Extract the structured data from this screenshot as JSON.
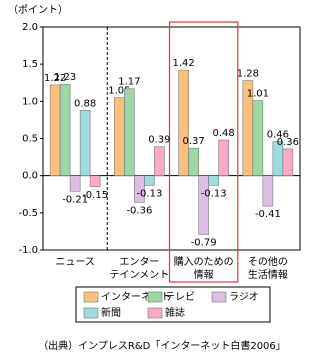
{
  "chart_data": {
    "type": "bar",
    "y_label": "（ポイント）",
    "categories": [
      "ニュース",
      "エンター\nテインメント",
      "購入のための\n情報",
      "その他の\n生活情報"
    ],
    "series": [
      {
        "name": "インターネット",
        "color": "#f9c07c",
        "values": [
          1.22,
          1.05,
          1.42,
          1.28
        ]
      },
      {
        "name": "テレビ",
        "color": "#9fd6a6",
        "values": [
          1.23,
          1.17,
          0.37,
          1.01
        ]
      },
      {
        "name": "ラジオ",
        "color": "#dcbde4",
        "values": [
          -0.21,
          -0.36,
          -0.79,
          -0.41
        ]
      },
      {
        "name": "新聞",
        "color": "#9edbdc",
        "values": [
          0.88,
          -0.13,
          -0.13,
          0.46
        ]
      },
      {
        "name": "雑誌",
        "color": "#f7abc9",
        "values": [
          -0.15,
          0.39,
          0.48,
          0.36
        ]
      }
    ],
    "ylim": [
      -1,
      2
    ],
    "yticks": [
      {
        "value": -1,
        "label": "-1.0"
      },
      -0.5,
      {
        "value": 0,
        "label": "0.0"
      },
      0.5,
      {
        "value": 1,
        "label": "1.0"
      },
      1.5,
      {
        "value": 2,
        "label": "2.0"
      }
    ],
    "source": "（出典）インプレスR&D「インターネット白書2006」"
  }
}
